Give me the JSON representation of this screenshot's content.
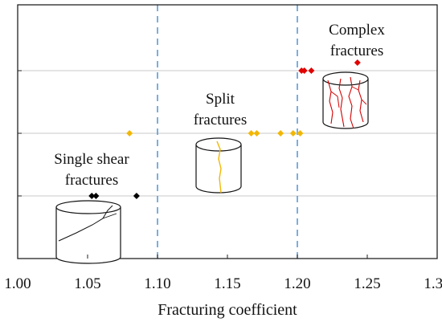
{
  "chart_data": {
    "type": "scatter",
    "xlabel": "Fracturing coefficient",
    "ylabel": "",
    "xlim": [
      1.0,
      1.3
    ],
    "x_ticks": [
      "1.00",
      "1.05",
      "1.10",
      "1.15",
      "1.20",
      "1.25",
      "1.30"
    ],
    "y_levels": 4,
    "grid": true,
    "legend": "none",
    "threshold_lines": [
      1.1,
      1.2
    ],
    "threshold_color": "#5b9bd5",
    "series": [
      {
        "color": "#000000",
        "level": 1,
        "x": [
          1.053,
          1.056,
          1.085
        ]
      },
      {
        "color": "#f2b705",
        "level": 2,
        "x": [
          1.08,
          1.167,
          1.171,
          1.188,
          1.197,
          1.202
        ]
      },
      {
        "color": "#e00000",
        "level": 3,
        "x": [
          1.203,
          1.205,
          1.21
        ]
      },
      {
        "color": "#e00000",
        "level": 3.1,
        "x": [
          1.243
        ]
      }
    ],
    "annotations": [
      {
        "lines": [
          "Single shear",
          "fractures"
        ]
      },
      {
        "lines": [
          "Split",
          "fractures"
        ]
      },
      {
        "lines": [
          "Complex",
          "fractures"
        ]
      }
    ]
  }
}
